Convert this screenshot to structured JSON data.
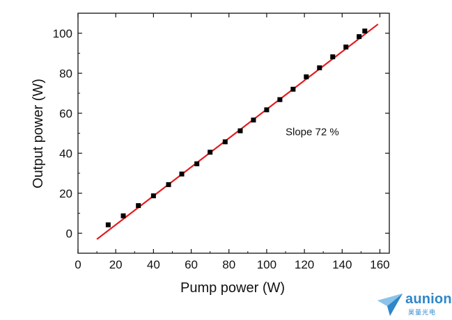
{
  "chart_data": {
    "type": "scatter",
    "title": "",
    "xlabel": "Pump power (W)",
    "ylabel": "Output power (W)",
    "xlim": [
      0,
      165
    ],
    "ylim": [
      -10,
      110
    ],
    "xticks": [
      0,
      20,
      40,
      60,
      80,
      100,
      120,
      140,
      160
    ],
    "yticks": [
      0,
      20,
      40,
      60,
      80,
      100
    ],
    "grid": false,
    "series": [
      {
        "kind": "scatter",
        "marker": "square",
        "color": "#000000",
        "x": [
          16,
          24,
          32,
          40,
          48,
          55,
          63,
          70,
          78,
          86,
          93,
          100,
          107,
          114,
          121,
          128,
          135,
          142,
          149,
          152
        ],
        "y": [
          4.2,
          8.7,
          13.8,
          18.7,
          24.3,
          29.6,
          34.7,
          40.5,
          45.7,
          51.2,
          56.6,
          61.7,
          66.8,
          72.0,
          78.2,
          82.7,
          88.2,
          93.1,
          98.3,
          101.1
        ]
      },
      {
        "kind": "line",
        "color": "#e41a1c",
        "x": [
          10,
          159
        ],
        "y": [
          -3,
          104.5
        ]
      }
    ],
    "annotations": [
      {
        "text": "Slope 72 %",
        "x": 110,
        "y": 49
      }
    ]
  },
  "watermark": {
    "brand": "aunion",
    "subtitle": "昊量光电"
  }
}
